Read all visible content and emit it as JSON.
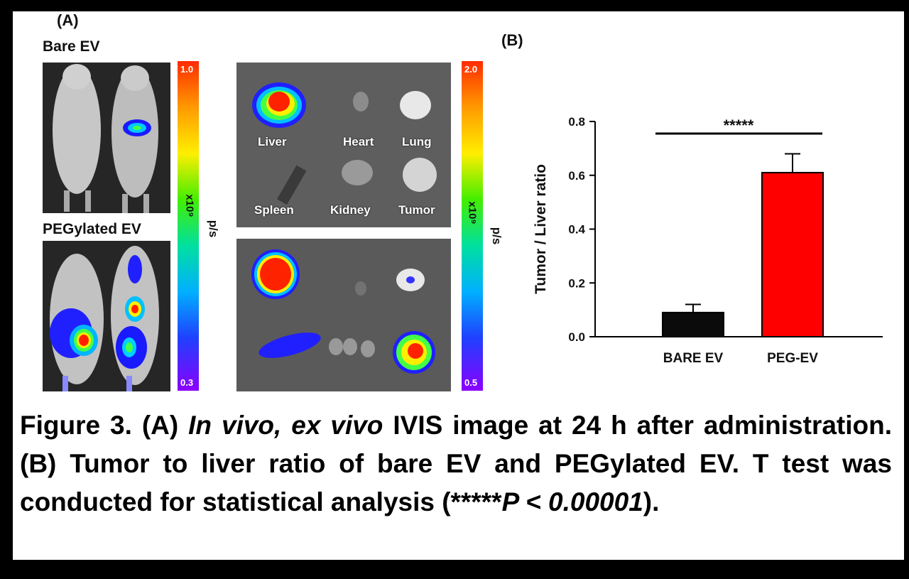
{
  "panel_a": {
    "label": "(A)",
    "bare_label": "Bare EV",
    "peg_label": "PEGylated EV",
    "scale1": {
      "max": "1.0",
      "min": "0.3",
      "unit_mult": "x10⁹",
      "unit": "p/s"
    },
    "scale2": {
      "max": "2.0",
      "min": "0.5",
      "unit_mult": "x10⁹",
      "unit": "p/s"
    },
    "organs": [
      "Liver",
      "Heart",
      "Lung",
      "Spleen",
      "Kidney",
      "Tumor"
    ]
  },
  "panel_b": {
    "label": "(B)"
  },
  "chart_data": {
    "type": "bar",
    "categories": [
      "BARE EV",
      "PEG-EV"
    ],
    "values": [
      0.09,
      0.61
    ],
    "errors": [
      0.03,
      0.07
    ],
    "colors": [
      "#0b0b0b",
      "#ff0000"
    ],
    "ylabel": "Tumor / Liver ratio",
    "ylim": [
      0,
      0.8
    ],
    "yticks": [
      "0.0",
      "0.2",
      "0.4",
      "0.6",
      "0.8"
    ],
    "significance": "*****"
  },
  "caption": {
    "p1": "Figure 3. (A) ",
    "p2": "In vivo, ex vivo",
    "p3": " IVIS image at 24 h after administration. (B) Tumor to liver ratio of bare EV and PEGylated EV. T test was conducted for statistical analysis (*****",
    "p4": "P < 0.00001",
    "p5": ")."
  }
}
